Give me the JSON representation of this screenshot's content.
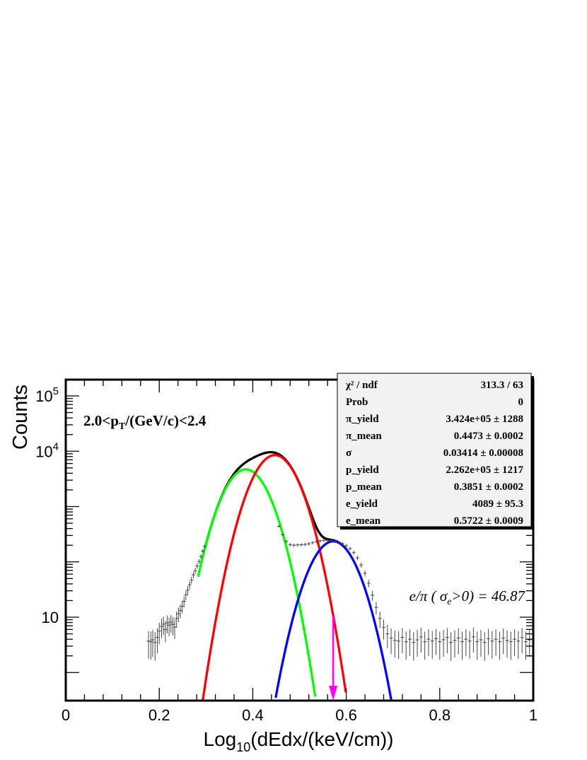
{
  "chart_data": {
    "type": "scatter",
    "xlabel": {
      "base": "Log",
      "sub": "10",
      "rest": "(dEdx/(keV/cm))"
    },
    "ylabel": "Counts",
    "xlim": [
      0,
      1
    ],
    "x_ticks": [
      "0",
      "0.2",
      "0.4",
      "0.6",
      "0.8",
      "1"
    ],
    "y_ticks": [
      {
        "base": "10",
        "exp": "5"
      },
      {
        "base": "10",
        "exp": "4"
      },
      {
        "base": "10",
        "exp": ""
      }
    ],
    "y_scale": "log",
    "y_tick_positions": [
      5,
      4,
      1
    ],
    "annotation_bin": {
      "pre": "2.0<p",
      "sub": "T",
      "post": "/(GeV/c)<2.4"
    },
    "annotation_ratio": {
      "pre": "e/π ( σ",
      "sub": "e",
      "post": ">0) = 46.87"
    },
    "colors": {
      "total": "#000000",
      "pion": "#ff0000",
      "proton": "#00ff00",
      "electron": "#0000ff",
      "arrow": "#ff00ff",
      "data": "#444444"
    },
    "cut_arrow_x": 0.572,
    "stats": [
      {
        "label": "χ² / ndf",
        "value": "313.3 / 63"
      },
      {
        "label": "Prob",
        "value": "0"
      },
      {
        "label": "π_yield",
        "value": "3.424e+05 ± 1288"
      },
      {
        "label": "π_mean",
        "value": "0.4473 ± 0.0002"
      },
      {
        "label": "σ",
        "value": "0.03414 ± 0.00008"
      },
      {
        "label": "p_yield",
        "value": "2.262e+05 ± 1217"
      },
      {
        "label": "p_mean",
        "value": "0.3851 ± 0.0002"
      },
      {
        "label": "e_yield",
        "value": "4089 ± 95.3"
      },
      {
        "label": "e_mean",
        "value": "0.5722 ± 0.0009"
      }
    ],
    "fit": {
      "pi_amp": 8500,
      "pi_mean": 0.4473,
      "p_amp": 4700,
      "p_mean": 0.3851,
      "e_amp": 235,
      "e_mean": 0.5722,
      "sigma": 0.03414
    },
    "data_points": [
      [
        0.177,
        3.7
      ],
      [
        0.182,
        3.6
      ],
      [
        0.186,
        3.9
      ],
      [
        0.191,
        3.5
      ],
      [
        0.196,
        4.3
      ],
      [
        0.2,
        5.6
      ],
      [
        0.205,
        6.8
      ],
      [
        0.209,
        7.5
      ],
      [
        0.213,
        6.0
      ],
      [
        0.217,
        7.9
      ],
      [
        0.221,
        7.2
      ],
      [
        0.225,
        8.1
      ],
      [
        0.229,
        7.4
      ],
      [
        0.233,
        6.6
      ],
      [
        0.237,
        9.5
      ],
      [
        0.241,
        11.5
      ],
      [
        0.245,
        13.2
      ],
      [
        0.249,
        15.8
      ],
      [
        0.253,
        19.4
      ],
      [
        0.257,
        25.2
      ],
      [
        0.261,
        30.8
      ],
      [
        0.265,
        38.5
      ],
      [
        0.269,
        47.0
      ],
      [
        0.273,
        58.2
      ],
      [
        0.277,
        69.0
      ],
      [
        0.281,
        84.3
      ],
      [
        0.285,
        101.8
      ],
      [
        0.289,
        125.3
      ],
      [
        0.293,
        156.9
      ],
      [
        0.297,
        190.5
      ],
      [
        0.456,
        440
      ],
      [
        0.464,
        310
      ],
      [
        0.472,
        235
      ],
      [
        0.48,
        205
      ],
      [
        0.488,
        200
      ],
      [
        0.496,
        203
      ],
      [
        0.504,
        204
      ],
      [
        0.512,
        207
      ],
      [
        0.52,
        212
      ],
      [
        0.528,
        222
      ],
      [
        0.536,
        232
      ],
      [
        0.544,
        240
      ],
      [
        0.552,
        244
      ],
      [
        0.56,
        245
      ],
      [
        0.568,
        242
      ],
      [
        0.576,
        236
      ],
      [
        0.584,
        226
      ],
      [
        0.592,
        214
      ],
      [
        0.6,
        196
      ],
      [
        0.608,
        174
      ],
      [
        0.616,
        147
      ],
      [
        0.624,
        118
      ],
      [
        0.632,
        88
      ],
      [
        0.64,
        62
      ],
      [
        0.648,
        41
      ],
      [
        0.656,
        25
      ],
      [
        0.664,
        15
      ],
      [
        0.672,
        9.5
      ],
      [
        0.68,
        6.5
      ],
      [
        0.688,
        5.0
      ],
      [
        0.696,
        4.2
      ],
      [
        0.704,
        3.8
      ],
      [
        0.712,
        3.7
      ],
      [
        0.72,
        4.3
      ],
      [
        0.728,
        3.6
      ],
      [
        0.736,
        4.0
      ],
      [
        0.744,
        3.5
      ],
      [
        0.752,
        3.9
      ],
      [
        0.76,
        4.4
      ],
      [
        0.768,
        3.6
      ],
      [
        0.776,
        4.0
      ],
      [
        0.784,
        3.7
      ],
      [
        0.792,
        4.1
      ],
      [
        0.8,
        3.6
      ],
      [
        0.808,
        3.9
      ],
      [
        0.816,
        4.3
      ],
      [
        0.824,
        3.5
      ],
      [
        0.832,
        3.8
      ],
      [
        0.84,
        4.2
      ],
      [
        0.848,
        3.6
      ],
      [
        0.856,
        4.0
      ],
      [
        0.864,
        3.7
      ],
      [
        0.872,
        4.4
      ],
      [
        0.88,
        3.6
      ],
      [
        0.888,
        3.9
      ],
      [
        0.896,
        3.5
      ],
      [
        0.904,
        4.1
      ],
      [
        0.912,
        3.7
      ],
      [
        0.92,
        4.0
      ],
      [
        0.928,
        3.6
      ],
      [
        0.936,
        4.2
      ],
      [
        0.944,
        3.8
      ],
      [
        0.952,
        3.6
      ],
      [
        0.96,
        4.0
      ],
      [
        0.968,
        3.7
      ],
      [
        0.976,
        4.3
      ],
      [
        0.984,
        3.6
      ],
      [
        0.992,
        3.9
      ]
    ]
  }
}
